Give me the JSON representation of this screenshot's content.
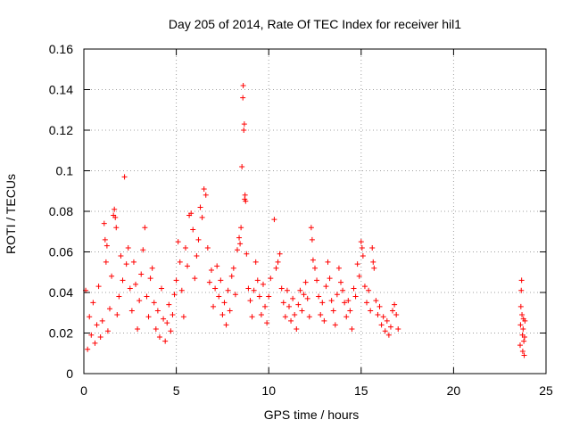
{
  "chart_data": {
    "type": "scatter",
    "title": "Day 205 of 2014, Rate Of TEC Index for receiver hil1",
    "xlabel": "GPS time / hours",
    "ylabel": "ROTI / TECUs",
    "xlim": [
      0,
      25
    ],
    "ylim": [
      0,
      0.16
    ],
    "xticks": [
      {
        "value": 0,
        "label": "0"
      },
      {
        "value": 5,
        "label": "5"
      },
      {
        "value": 10,
        "label": "10"
      },
      {
        "value": 15,
        "label": "15"
      },
      {
        "value": 20,
        "label": "20"
      },
      {
        "value": 25,
        "label": "25"
      }
    ],
    "yticks": [
      {
        "value": 0,
        "label": "0"
      },
      {
        "value": 0.02,
        "label": "0.02"
      },
      {
        "value": 0.04,
        "label": "0.04"
      },
      {
        "value": 0.06,
        "label": "0.06"
      },
      {
        "value": 0.08,
        "label": "0.08"
      },
      {
        "value": 0.1,
        "label": "0.1"
      },
      {
        "value": 0.12,
        "label": "0.12"
      },
      {
        "value": 0.14,
        "label": "0.14"
      },
      {
        "value": 0.16,
        "label": "0.16"
      }
    ],
    "grid": true,
    "marker": "+",
    "color": "#ff0000",
    "series": [
      {
        "name": "ROTI",
        "points": [
          [
            0.1,
            0.041
          ],
          [
            0.2,
            0.012
          ],
          [
            0.3,
            0.028
          ],
          [
            0.4,
            0.019
          ],
          [
            0.5,
            0.035
          ],
          [
            0.6,
            0.015
          ],
          [
            0.7,
            0.024
          ],
          [
            0.8,
            0.043
          ],
          [
            0.9,
            0.018
          ],
          [
            1.0,
            0.026
          ],
          [
            1.1,
            0.074
          ],
          [
            1.15,
            0.066
          ],
          [
            1.2,
            0.055
          ],
          [
            1.25,
            0.063
          ],
          [
            1.3,
            0.021
          ],
          [
            1.4,
            0.032
          ],
          [
            1.5,
            0.048
          ],
          [
            1.6,
            0.078
          ],
          [
            1.65,
            0.081
          ],
          [
            1.7,
            0.077
          ],
          [
            1.75,
            0.072
          ],
          [
            1.8,
            0.029
          ],
          [
            1.9,
            0.038
          ],
          [
            2.0,
            0.058
          ],
          [
            2.1,
            0.046
          ],
          [
            2.2,
            0.097
          ],
          [
            2.3,
            0.054
          ],
          [
            2.4,
            0.062
          ],
          [
            2.5,
            0.042
          ],
          [
            2.6,
            0.031
          ],
          [
            2.7,
            0.055
          ],
          [
            2.8,
            0.044
          ],
          [
            2.9,
            0.022
          ],
          [
            3.0,
            0.036
          ],
          [
            3.1,
            0.049
          ],
          [
            3.2,
            0.061
          ],
          [
            3.3,
            0.072
          ],
          [
            3.4,
            0.038
          ],
          [
            3.5,
            0.028
          ],
          [
            3.6,
            0.047
          ],
          [
            3.7,
            0.052
          ],
          [
            3.8,
            0.035
          ],
          [
            3.9,
            0.022
          ],
          [
            4.0,
            0.031
          ],
          [
            4.1,
            0.018
          ],
          [
            4.2,
            0.042
          ],
          [
            4.3,
            0.027
          ],
          [
            4.4,
            0.016
          ],
          [
            4.5,
            0.025
          ],
          [
            4.6,
            0.034
          ],
          [
            4.7,
            0.021
          ],
          [
            4.8,
            0.029
          ],
          [
            4.9,
            0.039
          ],
          [
            5.0,
            0.046
          ],
          [
            5.1,
            0.065
          ],
          [
            5.2,
            0.055
          ],
          [
            5.3,
            0.041
          ],
          [
            5.4,
            0.028
          ],
          [
            5.5,
            0.062
          ],
          [
            5.6,
            0.053
          ],
          [
            5.7,
            0.078
          ],
          [
            5.8,
            0.079
          ],
          [
            5.9,
            0.071
          ],
          [
            6.0,
            0.047
          ],
          [
            6.1,
            0.058
          ],
          [
            6.2,
            0.066
          ],
          [
            6.3,
            0.082
          ],
          [
            6.4,
            0.077
          ],
          [
            6.5,
            0.091
          ],
          [
            6.6,
            0.088
          ],
          [
            6.7,
            0.062
          ],
          [
            6.8,
            0.045
          ],
          [
            6.9,
            0.051
          ],
          [
            7.0,
            0.033
          ],
          [
            7.1,
            0.042
          ],
          [
            7.2,
            0.053
          ],
          [
            7.3,
            0.038
          ],
          [
            7.4,
            0.046
          ],
          [
            7.5,
            0.029
          ],
          [
            7.6,
            0.035
          ],
          [
            7.7,
            0.024
          ],
          [
            7.8,
            0.041
          ],
          [
            7.9,
            0.031
          ],
          [
            8.0,
            0.048
          ],
          [
            8.1,
            0.052
          ],
          [
            8.2,
            0.039
          ],
          [
            8.3,
            0.061
          ],
          [
            8.4,
            0.067
          ],
          [
            8.45,
            0.064
          ],
          [
            8.5,
            0.072
          ],
          [
            8.55,
            0.102
          ],
          [
            8.6,
            0.136
          ],
          [
            8.62,
            0.142
          ],
          [
            8.65,
            0.12
          ],
          [
            8.68,
            0.123
          ],
          [
            8.7,
            0.086
          ],
          [
            8.72,
            0.088
          ],
          [
            8.75,
            0.085
          ],
          [
            8.8,
            0.059
          ],
          [
            8.9,
            0.042
          ],
          [
            9.0,
            0.036
          ],
          [
            9.1,
            0.028
          ],
          [
            9.2,
            0.041
          ],
          [
            9.3,
            0.055
          ],
          [
            9.4,
            0.046
          ],
          [
            9.5,
            0.038
          ],
          [
            9.6,
            0.029
          ],
          [
            9.7,
            0.044
          ],
          [
            9.8,
            0.033
          ],
          [
            9.9,
            0.025
          ],
          [
            10.0,
            0.038
          ],
          [
            10.1,
            0.047
          ],
          [
            10.3,
            0.076
          ],
          [
            10.4,
            0.052
          ],
          [
            10.5,
            0.055
          ],
          [
            10.6,
            0.059
          ],
          [
            10.7,
            0.042
          ],
          [
            10.8,
            0.035
          ],
          [
            10.9,
            0.028
          ],
          [
            11.0,
            0.041
          ],
          [
            11.1,
            0.033
          ],
          [
            11.2,
            0.026
          ],
          [
            11.3,
            0.037
          ],
          [
            11.4,
            0.029
          ],
          [
            11.5,
            0.022
          ],
          [
            11.6,
            0.034
          ],
          [
            11.7,
            0.041
          ],
          [
            11.8,
            0.031
          ],
          [
            11.9,
            0.039
          ],
          [
            12.0,
            0.045
          ],
          [
            12.1,
            0.037
          ],
          [
            12.2,
            0.028
          ],
          [
            12.3,
            0.072
          ],
          [
            12.35,
            0.066
          ],
          [
            12.4,
            0.056
          ],
          [
            12.5,
            0.052
          ],
          [
            12.6,
            0.046
          ],
          [
            12.7,
            0.038
          ],
          [
            12.8,
            0.029
          ],
          [
            12.9,
            0.035
          ],
          [
            13.0,
            0.026
          ],
          [
            13.1,
            0.043
          ],
          [
            13.2,
            0.055
          ],
          [
            13.3,
            0.047
          ],
          [
            13.4,
            0.036
          ],
          [
            13.5,
            0.031
          ],
          [
            13.6,
            0.024
          ],
          [
            13.7,
            0.039
          ],
          [
            13.8,
            0.052
          ],
          [
            13.9,
            0.045
          ],
          [
            14.0,
            0.041
          ],
          [
            14.1,
            0.035
          ],
          [
            14.2,
            0.028
          ],
          [
            14.3,
            0.036
          ],
          [
            14.4,
            0.031
          ],
          [
            14.5,
            0.022
          ],
          [
            14.6,
            0.042
          ],
          [
            14.7,
            0.038
          ],
          [
            14.8,
            0.054
          ],
          [
            14.9,
            0.048
          ],
          [
            15.0,
            0.065
          ],
          [
            15.05,
            0.062
          ],
          [
            15.1,
            0.058
          ],
          [
            15.2,
            0.043
          ],
          [
            15.3,
            0.035
          ],
          [
            15.4,
            0.041
          ],
          [
            15.5,
            0.031
          ],
          [
            15.6,
            0.062
          ],
          [
            15.65,
            0.055
          ],
          [
            15.7,
            0.052
          ],
          [
            15.8,
            0.036
          ],
          [
            15.9,
            0.029
          ],
          [
            16.0,
            0.033
          ],
          [
            16.1,
            0.024
          ],
          [
            16.2,
            0.028
          ],
          [
            16.3,
            0.021
          ],
          [
            16.4,
            0.026
          ],
          [
            16.5,
            0.019
          ],
          [
            16.6,
            0.023
          ],
          [
            16.7,
            0.031
          ],
          [
            16.8,
            0.034
          ],
          [
            16.9,
            0.029
          ],
          [
            17.0,
            0.022
          ],
          [
            23.6,
            0.014
          ],
          [
            23.62,
            0.024
          ],
          [
            23.64,
            0.033
          ],
          [
            23.66,
            0.041
          ],
          [
            23.68,
            0.046
          ],
          [
            23.7,
            0.029
          ],
          [
            23.72,
            0.019
          ],
          [
            23.74,
            0.011
          ],
          [
            23.76,
            0.022
          ],
          [
            23.78,
            0.027
          ],
          [
            23.8,
            0.016
          ],
          [
            23.82,
            0.009
          ],
          [
            23.84,
            0.018
          ],
          [
            23.86,
            0.026
          ]
        ]
      }
    ]
  }
}
